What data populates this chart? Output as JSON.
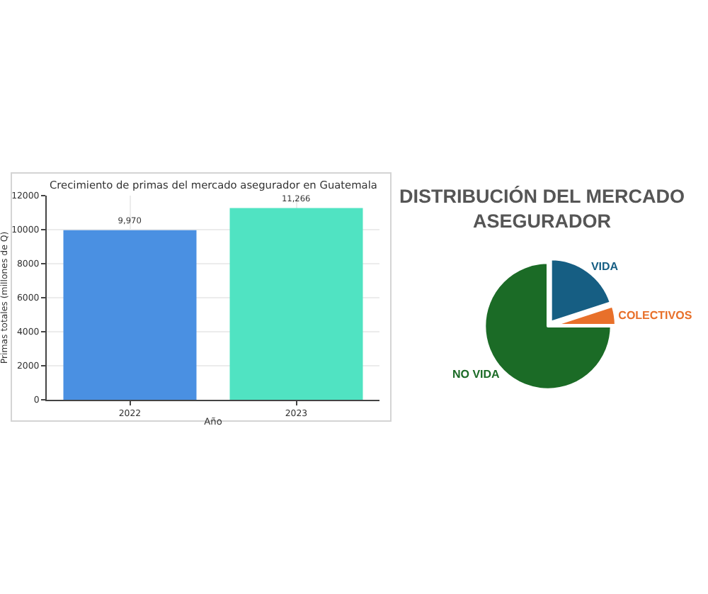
{
  "chart_data": [
    {
      "type": "bar",
      "title": "Crecimiento de primas del mercado asegurador en Guatemala",
      "xlabel": "Año",
      "ylabel": "Primas totales (millones de Q)",
      "categories": [
        "2022",
        "2023"
      ],
      "values": [
        9970,
        11266
      ],
      "colors": [
        "#4a90e2",
        "#50e3c2"
      ],
      "value_labels": [
        "9,970",
        "11,266"
      ],
      "ylim": [
        0,
        12000
      ],
      "yticks": [
        0,
        2000,
        4000,
        6000,
        8000,
        10000,
        12000
      ],
      "grid": true
    },
    {
      "type": "pie",
      "title": "DISTRIBUCIÓN DEL MERCADO\nASEGURADOR",
      "categories": [
        "VIDA",
        "COLECTIVOS",
        "NO VIDA"
      ],
      "values": [
        20,
        5,
        75
      ],
      "colors": [
        "#165e83",
        "#e8702a",
        "#1b6b26"
      ]
    }
  ]
}
